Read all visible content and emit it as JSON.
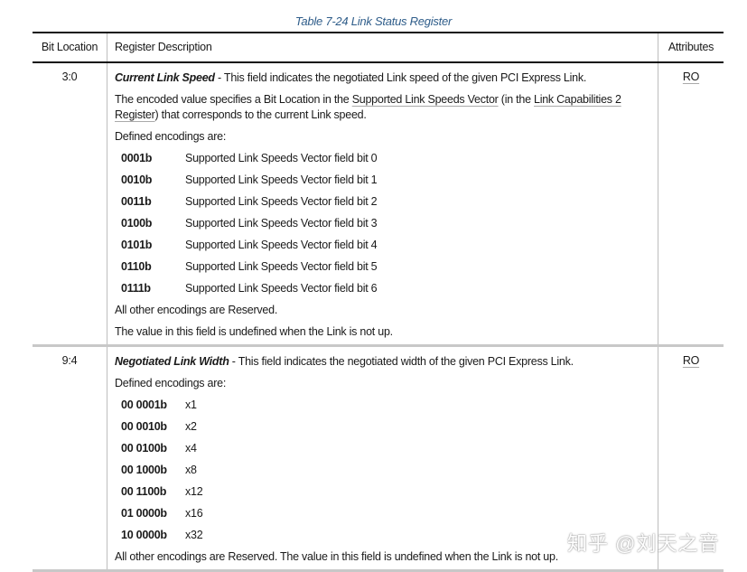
{
  "caption": "Table 7-24 Link Status Register",
  "headers": {
    "bit": "Bit Location",
    "desc": "Register Description",
    "attr": "Attributes"
  },
  "rows": [
    {
      "bit": "3:0",
      "attr": "RO",
      "title": "Current Link Speed",
      "title_rest": " - This field indicates the negotiated Link speed of the given PCI Express Link.",
      "p2a": "The encoded value specifies a Bit Location in the ",
      "p2_link1": "Supported Link Speeds Vector",
      "p2b": " (in the ",
      "p2_link2": "Link Capabilities 2 Register",
      "p2c": ") that corresponds to the current Link speed.",
      "defined": "Defined encodings are:",
      "encodings": [
        {
          "code": "0001b",
          "meaning": "Supported Link Speeds Vector field bit 0"
        },
        {
          "code": "0010b",
          "meaning": "Supported Link Speeds Vector field bit 1"
        },
        {
          "code": "0011b",
          "meaning": "Supported Link Speeds Vector field bit 2"
        },
        {
          "code": "0100b",
          "meaning": "Supported Link Speeds Vector field bit 3"
        },
        {
          "code": "0101b",
          "meaning": "Supported Link Speeds Vector field bit 4"
        },
        {
          "code": "0110b",
          "meaning": "Supported Link Speeds Vector field bit 5"
        },
        {
          "code": "0111b",
          "meaning": "Supported Link Speeds Vector field bit 6"
        }
      ],
      "reserved": "All other encodings are Reserved.",
      "undefined": "The value in this field is undefined when the Link is not up."
    },
    {
      "bit": "9:4",
      "attr": "RO",
      "title": "Negotiated Link Width",
      "title_rest": " - This field indicates the negotiated width of the given PCI Express Link.",
      "defined": "Defined encodings are:",
      "encodings": [
        {
          "code": "00 0001b",
          "meaning": "x1"
        },
        {
          "code": "00 0010b",
          "meaning": "x2"
        },
        {
          "code": "00 0100b",
          "meaning": "x4"
        },
        {
          "code": "00 1000b",
          "meaning": "x8"
        },
        {
          "code": "00 1100b",
          "meaning": "x12"
        },
        {
          "code": "01 0000b",
          "meaning": "x16"
        },
        {
          "code": "10 0000b",
          "meaning": "x32"
        }
      ],
      "reserved": "All other encodings are Reserved. The value in this field is undefined when the Link is not up."
    }
  ],
  "watermark": "知乎 @刘天之音"
}
